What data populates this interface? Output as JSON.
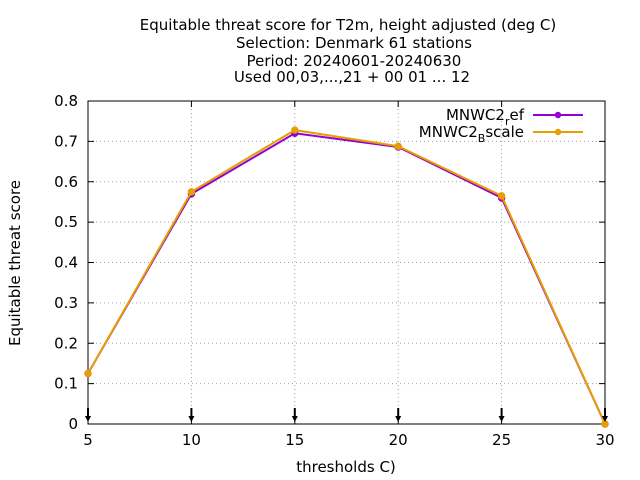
{
  "chart_data": {
    "type": "line",
    "title_lines": [
      "Equitable threat score  for T2m, height adjusted (deg C)",
      "Selection: Denmark     61 stations",
      "Period: 20240601-20240630",
      "Used 00,03,...,21 + 00 01 ... 12"
    ],
    "xlabel": "thresholds C)",
    "ylabel": "Equitable threat score",
    "x": [
      5,
      10,
      15,
      20,
      25,
      30
    ],
    "xlim": [
      5,
      30
    ],
    "ylim": [
      0,
      0.8
    ],
    "x_ticks": [
      "5",
      "10",
      "15",
      "20",
      "25",
      "30"
    ],
    "y_ticks": [
      "0",
      "0.1",
      "0.2",
      "0.3",
      "0.4",
      "0.5",
      "0.6",
      "0.7",
      "0.8"
    ],
    "grid": true,
    "legend_position": "top-right",
    "series": [
      {
        "name_main": "MNWC2",
        "name_sub": "r",
        "name_rest": "ef",
        "color": "#9400d3",
        "values": [
          0.125,
          0.57,
          0.72,
          0.686,
          0.56,
          0.0
        ]
      },
      {
        "name_main": "MNWC2",
        "name_sub": "B",
        "name_rest": "scale",
        "color": "#e69f00",
        "values": [
          0.125,
          0.575,
          0.728,
          0.688,
          0.565,
          0.0
        ]
      }
    ]
  }
}
